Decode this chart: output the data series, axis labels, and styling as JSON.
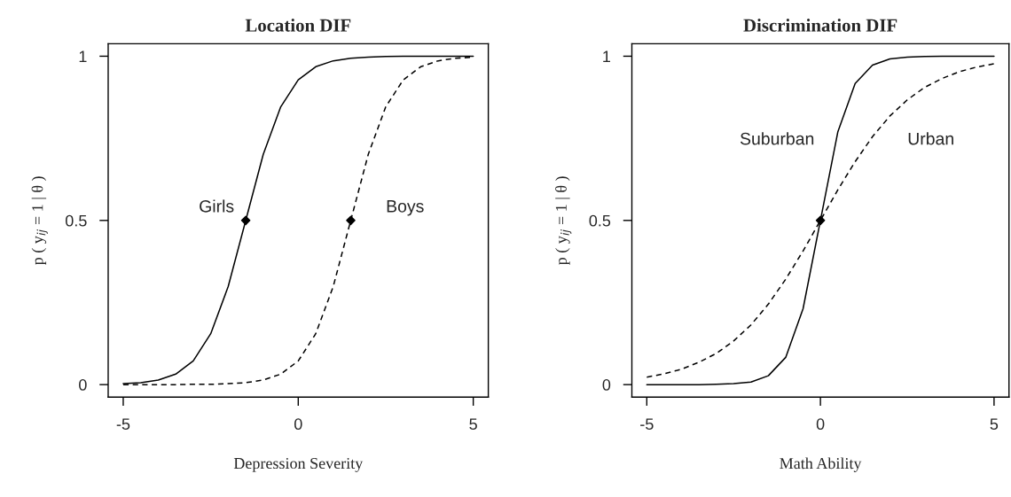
{
  "chart_data": [
    {
      "type": "line",
      "title": "Location DIF",
      "xlabel": "Depression Severity",
      "ylabel": "p ( y$_{ij}$ = 1 | θ )",
      "x": [
        -5,
        -4.5,
        -4,
        -3.5,
        -3,
        -2.5,
        -2,
        -1.5,
        -1,
        -0.5,
        0,
        0.5,
        1,
        1.5,
        2,
        2.5,
        3,
        3.5,
        4,
        4.5,
        5
      ],
      "series": [
        {
          "color": "#000000",
          "line_style": "solid",
          "values": [
            0.003,
            0.006,
            0.014,
            0.032,
            0.072,
            0.155,
            0.299,
            0.5,
            0.701,
            0.846,
            0.928,
            0.968,
            0.986,
            0.994,
            0.997,
            0.999,
            1.0,
            1.0,
            1.0,
            1.0,
            1.0
          ]
        },
        {
          "color": "#000000",
          "line_style": "dashed",
          "values": [
            0.0,
            0.0,
            0.0,
            0.0,
            0.001,
            0.001,
            0.003,
            0.006,
            0.014,
            0.032,
            0.072,
            0.155,
            0.299,
            0.5,
            0.701,
            0.846,
            0.928,
            0.968,
            0.986,
            0.994,
            0.997
          ]
        },
        {
          "type": "scatter",
          "marker": "diamond",
          "color": "#000000",
          "x": [
            -1.5,
            1.5
          ],
          "values": [
            0.5,
            0.5
          ]
        }
      ],
      "annotations": [
        "Girls",
        "Boys"
      ],
      "xlim": [
        -5.43,
        5.43
      ],
      "ylim": [
        -0.038,
        1.038
      ],
      "xticks": [
        -5,
        0,
        5
      ],
      "yticks": [
        0,
        0.5,
        1
      ],
      "grid": false,
      "legend": false
    },
    {
      "type": "line",
      "title": "Discrimination DIF",
      "xlabel": "Math Ability",
      "ylabel": "p ( y$_{ij}$ = 1 | θ )",
      "x": [
        -5,
        -4.5,
        -4,
        -3.5,
        -3,
        -2.5,
        -2,
        -1.5,
        -1,
        -0.5,
        0,
        0.5,
        1,
        1.5,
        2,
        2.5,
        3,
        3.5,
        4,
        4.5,
        5
      ],
      "series": [
        {
          "color": "#000000",
          "line_style": "solid",
          "values": [
            0.0,
            0.0,
            0.0,
            0.0,
            0.001,
            0.003,
            0.008,
            0.027,
            0.083,
            0.231,
            0.5,
            0.769,
            0.917,
            0.973,
            0.992,
            0.997,
            0.999,
            1.0,
            1.0,
            1.0,
            1.0
          ]
        },
        {
          "color": "#000000",
          "line_style": "dashed",
          "values": [
            0.023,
            0.033,
            0.047,
            0.068,
            0.095,
            0.133,
            0.182,
            0.245,
            0.321,
            0.407,
            0.5,
            0.593,
            0.679,
            0.755,
            0.818,
            0.867,
            0.905,
            0.932,
            0.953,
            0.967,
            0.977
          ]
        },
        {
          "type": "scatter",
          "marker": "diamond",
          "color": "#000000",
          "x": [
            0
          ],
          "values": [
            0.5
          ]
        }
      ],
      "annotations": [
        "Suburban",
        "Urban"
      ],
      "xlim": [
        -5.43,
        5.43
      ],
      "ylim": [
        -0.038,
        1.038
      ],
      "xticks": [
        -5,
        0,
        5
      ],
      "yticks": [
        0,
        0.5,
        1
      ],
      "grid": false,
      "legend": false
    }
  ]
}
